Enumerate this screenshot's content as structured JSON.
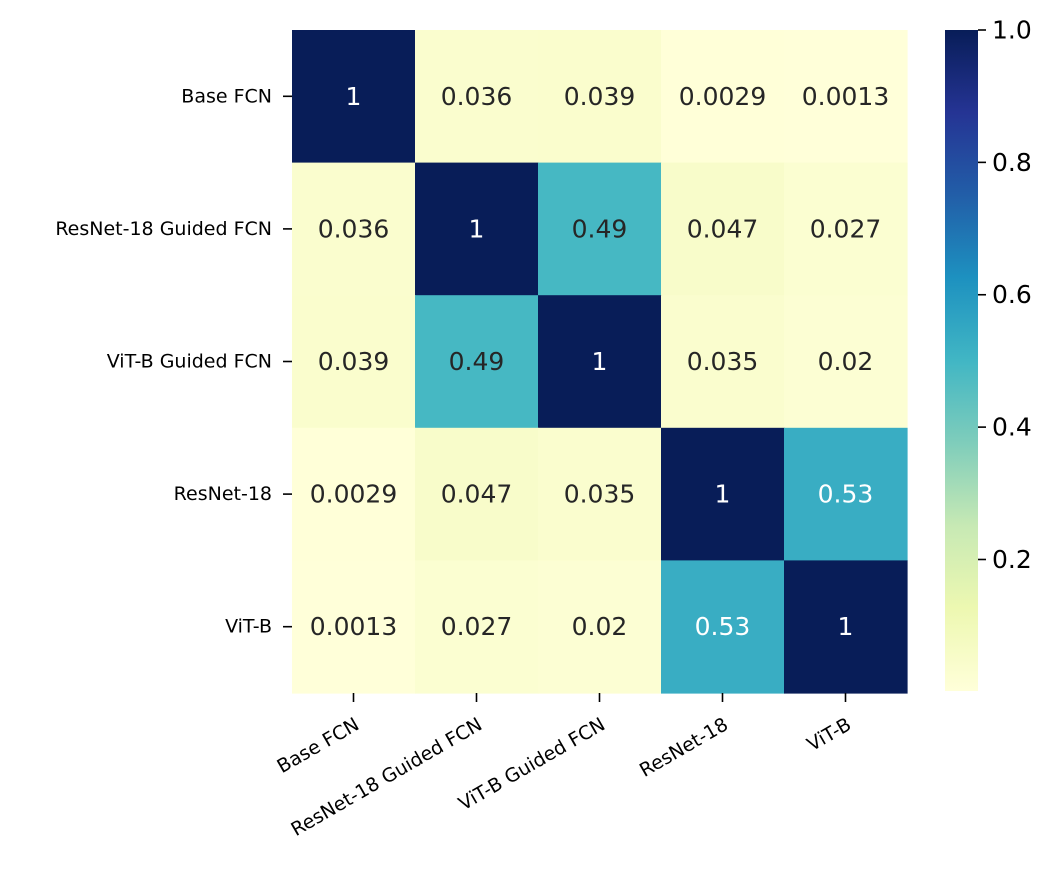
{
  "chart_data": {
    "type": "heatmap",
    "title": "",
    "xlabel": "",
    "ylabel": "",
    "x_categories": [
      "Base FCN",
      "ResNet-18 Guided FCN",
      "ViT-B Guided FCN",
      "ResNet-18",
      "ViT-B"
    ],
    "y_categories": [
      "Base FCN",
      "ResNet-18 Guided FCN",
      "ViT-B Guided FCN",
      "ResNet-18",
      "ViT-B"
    ],
    "values": [
      [
        1,
        0.036,
        0.039,
        0.0029,
        0.0013
      ],
      [
        0.036,
        1,
        0.49,
        0.047,
        0.027
      ],
      [
        0.039,
        0.49,
        1,
        0.035,
        0.02
      ],
      [
        0.0029,
        0.047,
        0.035,
        1,
        0.53
      ],
      [
        0.0013,
        0.027,
        0.02,
        0.53,
        1
      ]
    ],
    "cell_labels": [
      [
        "1",
        "0.036",
        "0.039",
        "0.0029",
        "0.0013"
      ],
      [
        "0.036",
        "1",
        "0.49",
        "0.047",
        "0.027"
      ],
      [
        "0.039",
        "0.49",
        "1",
        "0.035",
        "0.02"
      ],
      [
        "0.0029",
        "0.047",
        "0.035",
        "1",
        "0.53"
      ],
      [
        "0.0013",
        "0.027",
        "0.02",
        "0.53",
        "1"
      ]
    ],
    "colormap": "YlGnBu",
    "color_range": [
      0.0013,
      1.0
    ],
    "colorbar": {
      "placement": "right",
      "ticks": [
        0.2,
        0.4,
        0.6,
        0.8,
        1.0
      ],
      "tick_labels": [
        "0.2",
        "0.4",
        "0.6",
        "0.8",
        "1.0"
      ]
    },
    "x_tick_rotation_deg": -30,
    "grid": false
  }
}
